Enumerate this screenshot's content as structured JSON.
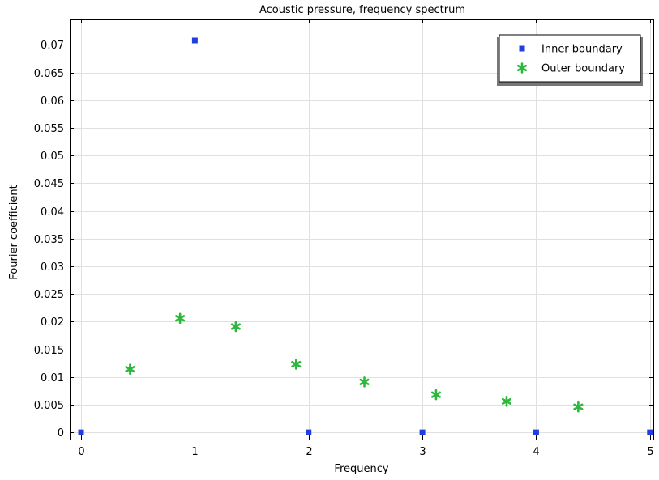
{
  "chart_data": {
    "type": "scatter",
    "title": "Acoustic pressure, frequency spectrum",
    "xlabel": "Frequency",
    "ylabel": "Fourier coefficient",
    "xlim": [
      -0.1,
      5.03
    ],
    "ylim": [
      -0.0013,
      0.0746
    ],
    "x_ticks": [
      0,
      1,
      2,
      3,
      4,
      5
    ],
    "x_tick_labels": [
      "0",
      "1",
      "2",
      "3",
      "4",
      "5"
    ],
    "y_ticks": [
      0,
      0.005,
      0.01,
      0.015,
      0.02,
      0.025,
      0.03,
      0.035,
      0.04,
      0.045,
      0.05,
      0.055,
      0.06,
      0.065,
      0.07
    ],
    "y_tick_labels": [
      "0",
      "0.005",
      "0.01",
      "0.015",
      "0.02",
      "0.025",
      "0.03",
      "0.035",
      "0.04",
      "0.045",
      "0.05",
      "0.055",
      "0.06",
      "0.065",
      "0.07"
    ],
    "grid": true,
    "legend_position": "top-right",
    "series": [
      {
        "name": "Inner boundary",
        "marker": "square",
        "color": "#1f3fe0",
        "x": [
          0,
          1,
          2,
          3,
          4,
          5
        ],
        "y": [
          0,
          0.0708,
          0,
          0,
          0,
          0
        ]
      },
      {
        "name": "Outer boundary",
        "marker": "asterisk",
        "color": "#2db83d",
        "x": [
          0.43,
          0.87,
          1.36,
          1.89,
          2.49,
          3.12,
          3.74,
          4.37
        ],
        "y": [
          0.0114,
          0.0206,
          0.0191,
          0.0123,
          0.0091,
          0.0068,
          0.0056,
          0.0046
        ]
      }
    ]
  }
}
